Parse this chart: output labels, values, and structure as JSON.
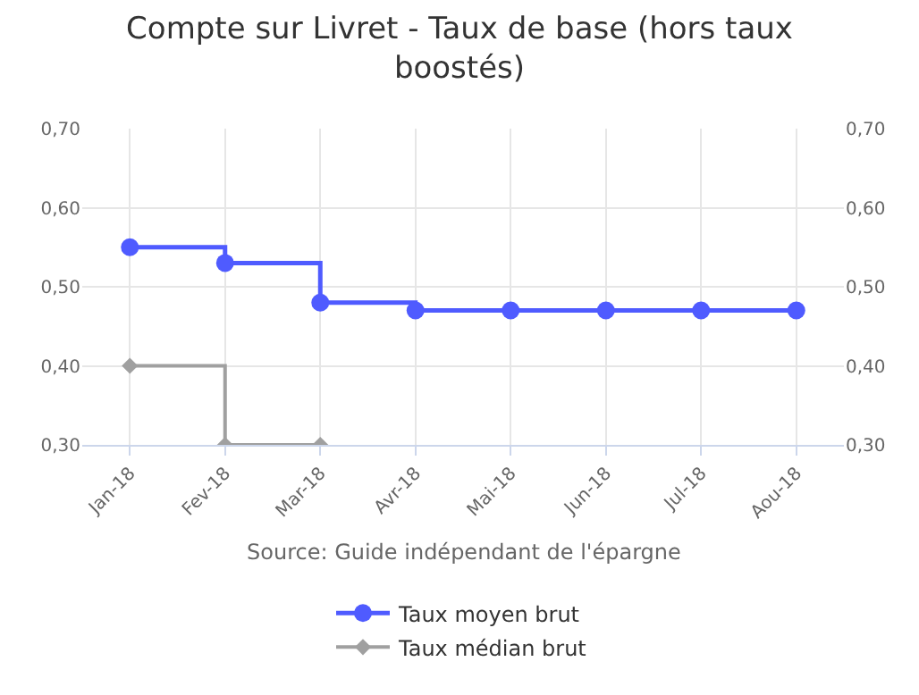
{
  "chart_data": {
    "type": "step",
    "title": "Compte sur Livret - Taux de base (hors taux\nboostés)",
    "categories": [
      "Jan-18",
      "Fev-18",
      "Mar-18",
      "Avr-18",
      "Mai-18",
      "Jun-18",
      "Jul-18",
      "Aou-18"
    ],
    "series": [
      {
        "name": "Taux moyen brut",
        "color": "#4f5bff",
        "marker": "circle",
        "values": [
          0.55,
          0.53,
          0.48,
          0.47,
          0.47,
          0.47,
          0.47,
          0.47
        ]
      },
      {
        "name": "Taux médian brut",
        "color": "#a0a0a0",
        "marker": "diamond",
        "values": [
          0.4,
          0.3,
          0.3,
          null,
          null,
          null,
          null,
          null
        ]
      }
    ],
    "ylim": [
      0.3,
      0.7
    ],
    "yticks": [
      {
        "value": 0.3,
        "label": "0,30"
      },
      {
        "value": 0.4,
        "label": "0,40"
      },
      {
        "value": 0.5,
        "label": "0,50"
      },
      {
        "value": 0.6,
        "label": "0,60"
      },
      {
        "value": 0.7,
        "label": "0,70"
      }
    ],
    "y2lim": [
      0.3,
      0.7
    ],
    "y2ticks": [
      {
        "value": 0.3,
        "label": "0,30"
      },
      {
        "value": 0.4,
        "label": "0,40"
      },
      {
        "value": 0.5,
        "label": "0,50"
      },
      {
        "value": 0.6,
        "label": "0,60"
      },
      {
        "value": 0.7,
        "label": "0,70"
      }
    ],
    "annotations": [
      "Source: Guide indépendant de l'épargne"
    ],
    "grid": true,
    "legend": "bottom",
    "line_style": "solid"
  }
}
